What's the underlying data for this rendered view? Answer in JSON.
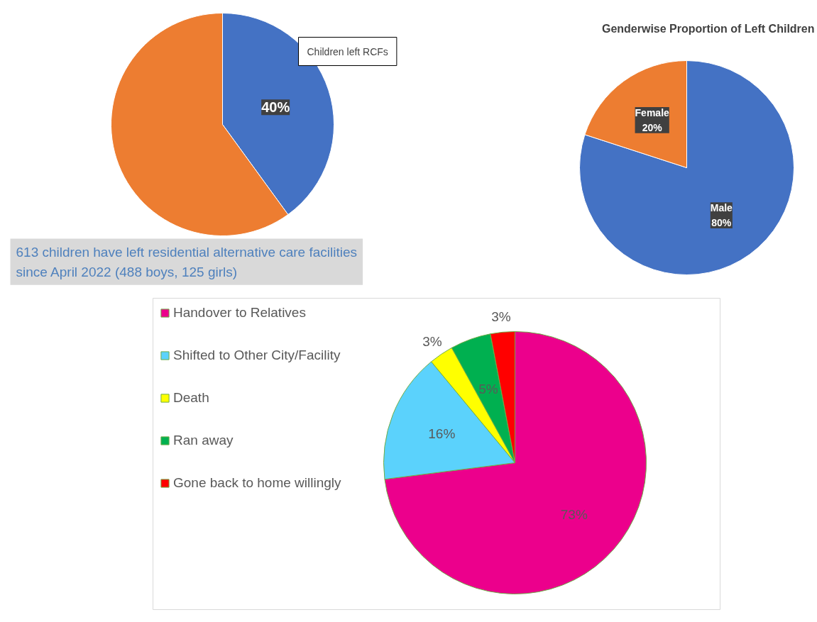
{
  "chart_data": [
    {
      "type": "pie",
      "title": "Children left RCFs",
      "categories": [
        null,
        null
      ],
      "values": [
        40,
        60
      ],
      "colors": [
        "#4472c4",
        "#ed7d31"
      ],
      "value_labels": [
        "40%",
        null
      ],
      "legend": false,
      "annotations": [
        "613 children have left residential alternative care facilities since April 2022 (488 boys, 125 girls)"
      ]
    },
    {
      "type": "pie",
      "title": "Genderwise Proportion of Left Children",
      "categories": [
        "Male",
        "Female"
      ],
      "values": [
        80,
        20
      ],
      "colors": [
        "#4472c4",
        "#ed7d31"
      ],
      "value_labels": [
        "80%",
        "20%"
      ],
      "legend": false
    },
    {
      "type": "pie",
      "categories": [
        "Handover to Relatives",
        "Shifted to Other City/Facility",
        "Death",
        "Ran away",
        "Gone back to home willingly"
      ],
      "values": [
        73,
        16,
        3,
        5,
        3
      ],
      "colors": [
        "#ec008c",
        "#5bd2fc",
        "#ffff00",
        "#00b050",
        "#ff0000"
      ],
      "value_labels": [
        "73%",
        "16%",
        "3%",
        "5%",
        "3%"
      ],
      "legend": "left"
    }
  ]
}
